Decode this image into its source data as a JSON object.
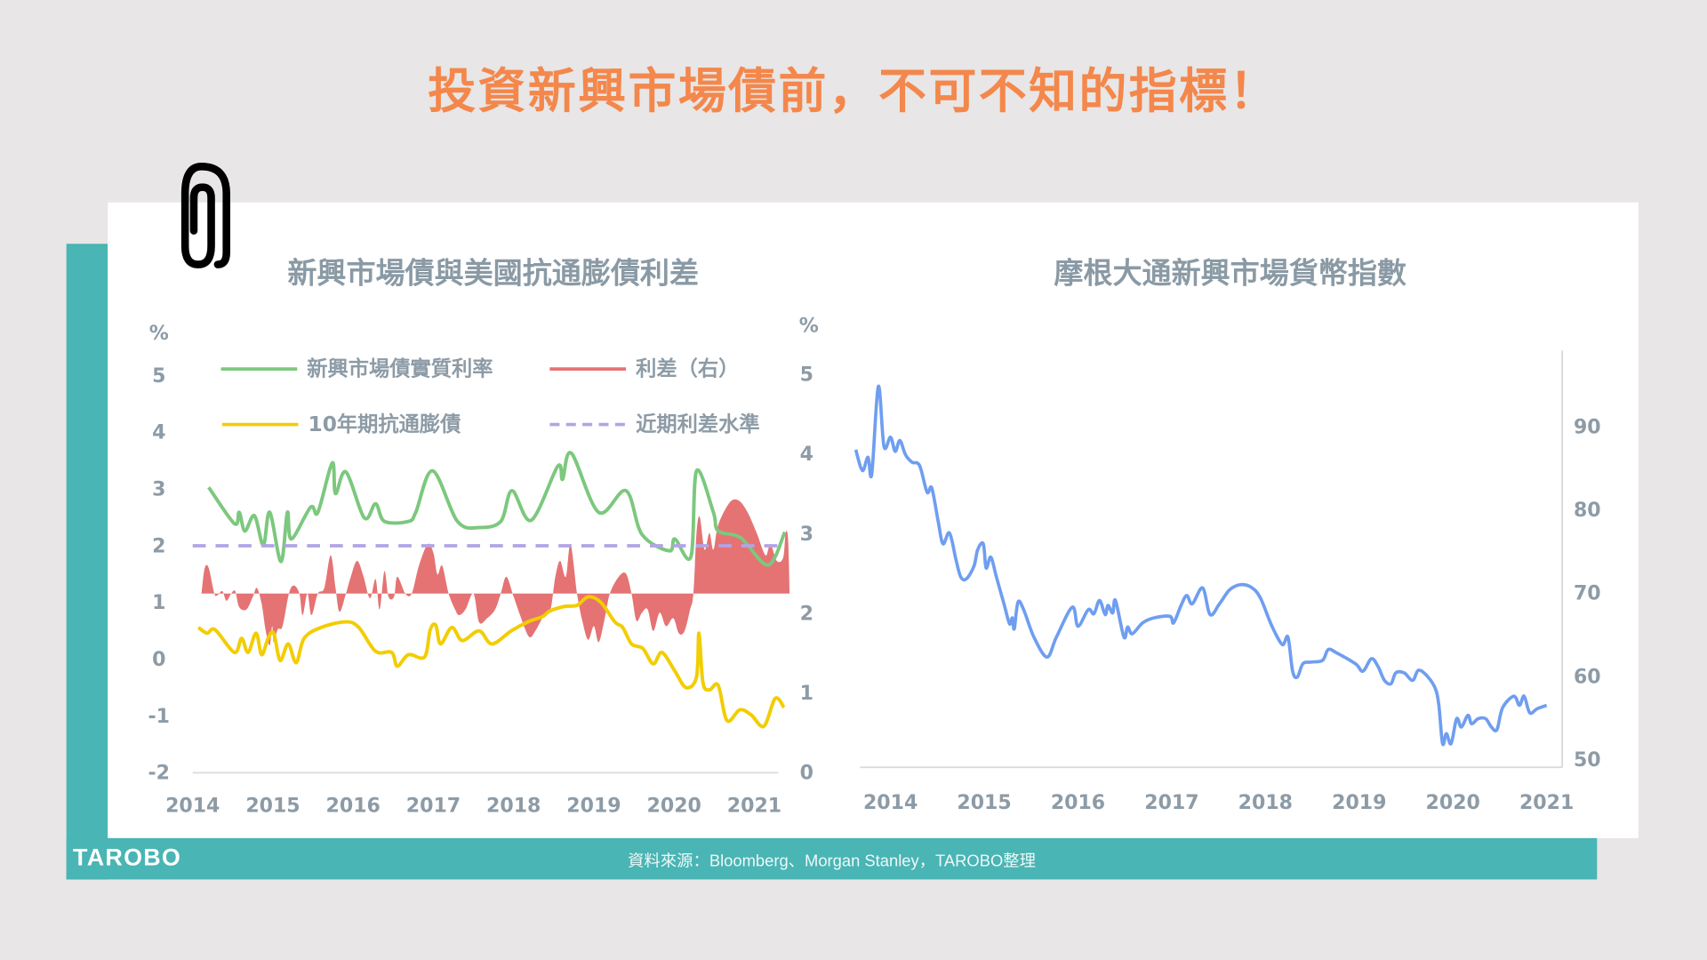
{
  "page_title": "投資新興市場債前，不可不知的指標！",
  "footer": {
    "logo": "TAROBO",
    "source": "資料來源：Bloomberg、Morgan  Stanley，TAROBO整理"
  },
  "colors": {
    "title": "#f4874b",
    "teal": "#49b5b4",
    "green": "#7cc87e",
    "red": "#e57373",
    "yellow": "#f2cd00",
    "dashed": "#b3a3e6",
    "blue": "#6f9ef0"
  },
  "chart_data": [
    {
      "type": "line",
      "title": "新興市場債與美國抗通膨債利差",
      "left_axis": {
        "unit": "%",
        "ticks": [
          "5",
          "4",
          "3",
          "2",
          "1",
          "0",
          "-1",
          "-2"
        ],
        "range": [
          -2,
          5
        ]
      },
      "right_axis": {
        "unit": "%",
        "ticks": [
          "5",
          "4",
          "3",
          "2",
          "1",
          "0"
        ],
        "range": [
          0,
          5
        ]
      },
      "x_ticks": [
        "2014",
        "2015",
        "2016",
        "2017",
        "2018",
        "2019",
        "2020",
        "2021"
      ],
      "legend": {
        "green": "新興市場債實質利率",
        "red": "利差（右）",
        "yellow": "10年期抗通膨債",
        "dashed": "近期利差水準"
      },
      "series": [
        {
          "name": "新興市場債實質利率",
          "axis": "left",
          "color": "#7cc87e",
          "x": [
            2014.2,
            2014.52,
            2014.58,
            2014.65,
            2014.77,
            2014.88,
            2014.96,
            2015.1,
            2015.18,
            2015.23,
            2015.47,
            2015.56,
            2015.74,
            2015.78,
            2015.91,
            2016.14,
            2016.28,
            2016.39,
            2016.69,
            2016.78,
            2016.99,
            2017.3,
            2017.57,
            2017.84,
            2017.98,
            2018.22,
            2018.55,
            2018.61,
            2018.72,
            2019.06,
            2019.4,
            2019.6,
            2019.94,
            2020.01,
            2020.21,
            2020.28,
            2020.49,
            2020.55,
            2020.83,
            2021.17,
            2021.38
          ],
          "y": [
            3.03,
            2.39,
            2.59,
            2.26,
            2.53,
            2.01,
            2.59,
            1.72,
            2.59,
            2.12,
            2.68,
            2.59,
            3.46,
            2.92,
            3.3,
            2.49,
            2.74,
            2.43,
            2.43,
            2.59,
            3.32,
            2.43,
            2.32,
            2.43,
            2.97,
            2.45,
            3.4,
            3.17,
            3.63,
            2.59,
            2.97,
            2.2,
            1.91,
            2.12,
            1.81,
            3.32,
            2.59,
            2.26,
            2.14,
            1.66,
            2.24
          ]
        },
        {
          "name": "10年期抗通膨債",
          "axis": "left",
          "color": "#f2cd00",
          "x": [
            2014.07,
            2014.18,
            2014.28,
            2014.52,
            2014.61,
            2014.69,
            2014.79,
            2014.86,
            2014.94,
            2015.01,
            2015.09,
            2015.19,
            2015.29,
            2015.39,
            2015.6,
            2015.91,
            2016.07,
            2016.28,
            2016.48,
            2016.55,
            2016.69,
            2016.89,
            2016.96,
            2017.03,
            2017.09,
            2017.23,
            2017.36,
            2017.57,
            2017.73,
            2017.97,
            2018.18,
            2018.36,
            2018.45,
            2018.63,
            2018.79,
            2018.93,
            2019.09,
            2019.26,
            2019.36,
            2019.47,
            2019.61,
            2019.74,
            2019.85,
            2020.01,
            2020.15,
            2020.28,
            2020.31,
            2020.36,
            2020.44,
            2020.55,
            2020.66,
            2020.82,
            2020.96,
            2021.12,
            2021.26,
            2021.37
          ],
          "y": [
            0.56,
            0.46,
            0.52,
            0.12,
            0.37,
            0.12,
            0.46,
            0.08,
            0.37,
            0.46,
            -0.02,
            0.27,
            -0.06,
            0.37,
            0.56,
            0.66,
            0.56,
            0.14,
            0.12,
            -0.12,
            0.08,
            0.04,
            0.52,
            0.6,
            0.27,
            0.56,
            0.33,
            0.5,
            0.27,
            0.5,
            0.66,
            0.75,
            0.85,
            0.93,
            0.95,
            1.1,
            1.0,
            0.66,
            0.56,
            0.27,
            0.19,
            -0.08,
            0.12,
            -0.21,
            -0.5,
            -0.31,
            0.46,
            -0.41,
            -0.54,
            -0.46,
            -1.08,
            -0.89,
            -0.98,
            -1.18,
            -0.69,
            -0.85
          ]
        },
        {
          "name": "利差（右）",
          "axis": "right",
          "type": "area",
          "baseline": 2.25,
          "color": "#e57373",
          "x": [
            2014.11,
            2014.15,
            2014.2,
            2014.27,
            2014.31,
            2014.37,
            2014.42,
            2014.48,
            2014.53,
            2014.58,
            2014.67,
            2014.75,
            2014.8,
            2014.86,
            2014.91,
            2014.96,
            2014.99,
            2015.01,
            2015.06,
            2015.12,
            2015.2,
            2015.26,
            2015.33,
            2015.37,
            2015.43,
            2015.48,
            2015.56,
            2015.64,
            2015.72,
            2015.78,
            2015.83,
            2015.91,
            2015.97,
            2016.05,
            2016.13,
            2016.21,
            2016.28,
            2016.33,
            2016.39,
            2016.44,
            2016.51,
            2016.55,
            2016.65,
            2016.73,
            2016.82,
            2016.93,
            2017.0,
            2017.05,
            2017.11,
            2017.19,
            2017.27,
            2017.32,
            2017.4,
            2017.5,
            2017.57,
            2017.67,
            2017.77,
            2017.84,
            2017.91,
            2018.0,
            2018.08,
            2018.19,
            2018.27,
            2018.38,
            2018.46,
            2018.52,
            2018.58,
            2018.65,
            2018.71,
            2018.79,
            2018.86,
            2018.93,
            2019.0,
            2019.06,
            2019.13,
            2019.2,
            2019.31,
            2019.4,
            2019.47,
            2019.53,
            2019.6,
            2019.67,
            2019.74,
            2019.82,
            2019.9,
            2019.99,
            2020.06,
            2020.13,
            2020.2,
            2020.24,
            2020.28,
            2020.32,
            2020.38,
            2020.44,
            2020.49,
            2020.55,
            2020.69,
            2020.8,
            2020.91,
            2021.03,
            2021.14,
            2021.2,
            2021.28,
            2021.36,
            2021.39,
            2021.42,
            2021.44
          ],
          "y": [
            2.25,
            2.57,
            2.57,
            2.25,
            2.23,
            2.28,
            2.16,
            2.25,
            2.28,
            2.08,
            2.05,
            2.21,
            2.32,
            2.12,
            1.78,
            1.6,
            1.84,
            1.64,
            1.8,
            1.84,
            2.25,
            2.35,
            2.25,
            1.98,
            2.25,
            1.98,
            2.25,
            2.32,
            2.73,
            2.32,
            2.02,
            2.25,
            2.46,
            2.66,
            2.46,
            2.19,
            2.43,
            2.05,
            2.53,
            2.21,
            2.21,
            2.46,
            2.25,
            2.25,
            2.6,
            2.87,
            2.76,
            2.49,
            2.6,
            2.25,
            2.05,
            1.98,
            2.05,
            2.25,
            1.89,
            1.94,
            2.05,
            2.25,
            2.46,
            2.21,
            1.98,
            1.71,
            1.78,
            1.98,
            2.05,
            2.46,
            2.66,
            2.46,
            2.87,
            2.25,
            1.89,
            1.67,
            1.84,
            1.64,
            1.91,
            2.25,
            2.46,
            2.5,
            2.25,
            1.91,
            2.01,
            2.05,
            1.78,
            2.01,
            1.84,
            1.94,
            1.75,
            1.78,
            2.05,
            2.25,
            3.01,
            3.21,
            2.8,
            3.01,
            2.8,
            3.11,
            3.39,
            3.42,
            3.28,
            3.01,
            2.73,
            2.87,
            2.66,
            2.7,
            3.01,
            2.94,
            2.25
          ]
        },
        {
          "name": "近期利差水準",
          "axis": "left",
          "type": "dashed",
          "x": [
            2014.0,
            2021.4
          ],
          "y": [
            2,
            2
          ],
          "color": "#b3a3e6"
        }
      ]
    },
    {
      "type": "line",
      "title": "摩根大通新興市場貨幣指數",
      "right_axis": {
        "ticks": [
          "90",
          "80",
          "70",
          "60",
          "50"
        ],
        "range": [
          50,
          97
        ]
      },
      "x_ticks": [
        "2014",
        "2015",
        "2016",
        "2017",
        "2018",
        "2019",
        "2020",
        "2021"
      ],
      "series": [
        {
          "color": "#6f9ef0",
          "x": [
            2013.63,
            2013.7,
            2013.76,
            2013.8,
            2013.87,
            2013.93,
            2014.0,
            2014.05,
            2014.1,
            2014.16,
            2014.23,
            2014.31,
            2014.39,
            2014.44,
            2014.51,
            2014.56,
            2014.63,
            2014.7,
            2014.75,
            2014.81,
            2014.89,
            2014.93,
            2014.99,
            2015.02,
            2015.07,
            2015.13,
            2015.21,
            2015.27,
            2015.3,
            2015.32,
            2015.36,
            2015.42,
            2015.53,
            2015.67,
            2015.77,
            2015.94,
            2016.0,
            2016.11,
            2016.17,
            2016.23,
            2016.29,
            2016.32,
            2016.37,
            2016.4,
            2016.49,
            2016.53,
            2016.58,
            2016.69,
            2016.81,
            2016.98,
            2017.02,
            2017.1,
            2017.16,
            2017.22,
            2017.33,
            2017.41,
            2017.51,
            2017.62,
            2017.74,
            2017.86,
            2017.95,
            2018.07,
            2018.18,
            2018.24,
            2018.29,
            2018.34,
            2018.4,
            2018.49,
            2018.61,
            2018.67,
            2018.76,
            2018.96,
            2019.04,
            2019.13,
            2019.2,
            2019.27,
            2019.34,
            2019.39,
            2019.48,
            2019.57,
            2019.63,
            2019.71,
            2019.81,
            2019.85,
            2019.89,
            2019.93,
            2019.98,
            2020.04,
            2020.09,
            2020.16,
            2020.2,
            2020.27,
            2020.35,
            2020.41,
            2020.47,
            2020.53,
            2020.65,
            2020.71,
            2020.76,
            2020.82,
            2020.9,
            2021.0
          ],
          "y": [
            87.1,
            84.6,
            86.2,
            84.2,
            94.7,
            87.5,
            88.6,
            86.9,
            88.2,
            86.5,
            85.6,
            85.2,
            82.0,
            82.5,
            78.4,
            75.8,
            77.1,
            73.8,
            71.8,
            71.6,
            73.1,
            75.1,
            75.8,
            72.9,
            74.2,
            71.8,
            68.6,
            66.2,
            66.9,
            65.6,
            68.8,
            67.9,
            64.6,
            62.2,
            64.6,
            68.2,
            65.9,
            67.9,
            67.4,
            69.0,
            67.3,
            68.4,
            67.5,
            69.0,
            64.6,
            65.8,
            65.0,
            66.3,
            66.9,
            67.1,
            66.3,
            68.4,
            69.6,
            68.6,
            70.5,
            67.3,
            68.6,
            70.3,
            70.9,
            70.5,
            69.2,
            65.9,
            63.7,
            64.6,
            60.5,
            59.8,
            61.4,
            61.6,
            61.8,
            63.1,
            62.7,
            61.4,
            60.5,
            62.0,
            61.1,
            59.4,
            59.0,
            60.3,
            60.3,
            59.4,
            60.6,
            60.1,
            58.5,
            56.4,
            51.8,
            53.0,
            51.8,
            54.8,
            53.8,
            55.2,
            54.2,
            54.8,
            54.8,
            53.8,
            53.5,
            56.1,
            57.5,
            56.4,
            57.5,
            55.5,
            56.0,
            56.4
          ]
        }
      ]
    }
  ]
}
